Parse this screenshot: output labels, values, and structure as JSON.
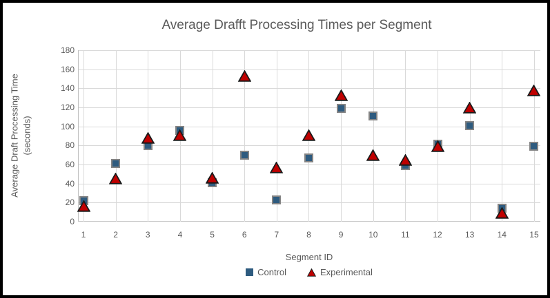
{
  "window": {
    "border_color": "#000000",
    "background": "#ffffff"
  },
  "colors": {
    "gridline": "#D9D9D9",
    "axis_line": "#BFBFBF",
    "text": "#595959"
  },
  "chart_data": {
    "type": "scatter",
    "title": "Average Drafft Processing Times per Segment",
    "xlabel": "Segment ID",
    "ylabel": "Average Draft Processing Time (seconds)",
    "ylabel_line1": "Average Draft Processing Time",
    "ylabel_line2": "(seconds)",
    "categories": [
      1,
      2,
      3,
      4,
      5,
      6,
      7,
      8,
      9,
      10,
      11,
      12,
      13,
      14,
      15
    ],
    "series": [
      {
        "name": "Control",
        "marker": "square",
        "color": "#2E5B7F",
        "outline": "#848484",
        "values": [
          22,
          61,
          80,
          96,
          41,
          70,
          23,
          67,
          119,
          111,
          59,
          81,
          101,
          14,
          79
        ]
      },
      {
        "name": "Experimental",
        "marker": "triangle",
        "color": "#C00000",
        "outline": "#1a1a1a",
        "values": [
          16,
          45,
          88,
          91,
          46,
          153,
          57,
          91,
          133,
          70,
          65,
          79,
          120,
          9,
          138
        ]
      }
    ],
    "ylim": [
      0,
      180
    ],
    "ytick_step": 20,
    "grid": true,
    "legend_position": "bottom"
  }
}
